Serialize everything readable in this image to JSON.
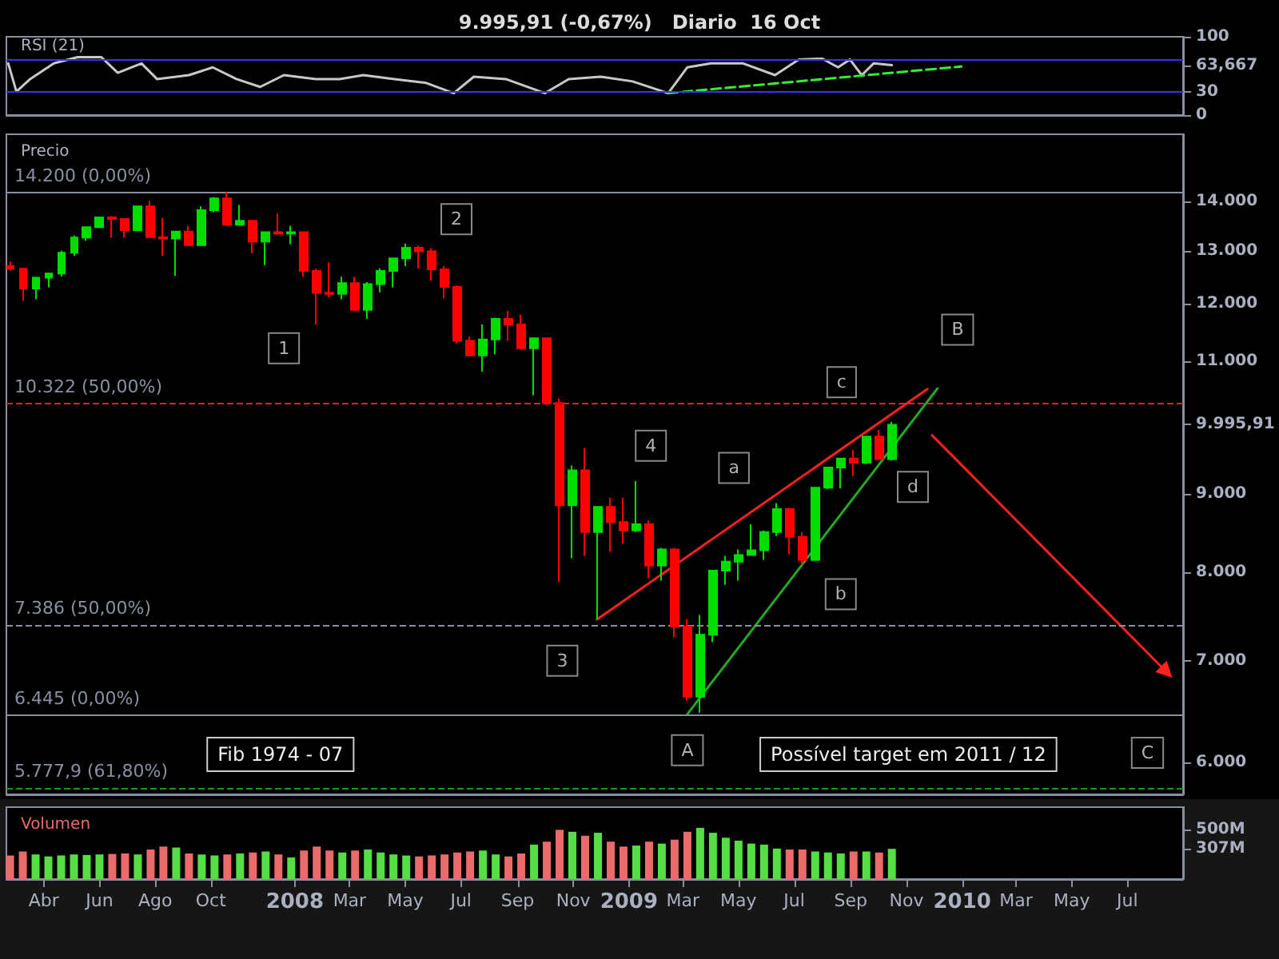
{
  "chart_data": [
    {
      "type": "line",
      "title": "9.995,91 (-0,67%)   Diario  16 Oct",
      "subtitle": "RSI (21)",
      "x": [
        "2007-02-21",
        "2007-03-02",
        "2007-03-17",
        "2007-04-12",
        "2007-05-08",
        "2007-06-03",
        "2007-06-21",
        "2007-07-17",
        "2007-08-03",
        "2007-09-07",
        "2007-10-03",
        "2007-10-29",
        "2007-11-24",
        "2007-12-20",
        "2008-01-24",
        "2008-02-19",
        "2008-03-16",
        "2008-04-19",
        "2008-05-24",
        "2008-06-23",
        "2008-07-15",
        "2008-08-19",
        "2008-10-01",
        "2008-10-27",
        "2008-12-01",
        "2009-01-05",
        "2009-02-13",
        "2009-03-06",
        "2009-04-01",
        "2009-05-06",
        "2009-06-10",
        "2009-07-06",
        "2009-08-01",
        "2009-08-18",
        "2009-08-31",
        "2009-09-13",
        "2009-09-26",
        "2009-10-16"
      ],
      "series": [
        {
          "color": "#c8c8c8",
          "values": [
            66,
            30,
            46,
            66,
            74,
            74,
            54,
            66,
            46,
            51,
            61,
            46,
            36,
            51,
            46,
            46,
            51,
            46,
            41,
            28,
            49,
            46,
            28,
            46,
            49,
            43,
            28,
            61,
            66,
            66,
            51,
            71,
            72,
            61,
            71,
            51,
            66,
            63.667
          ]
        },
        {
          "color": "#33ee33",
          "line_style": "dashed",
          "x": [
            "2009-02-13",
            "2009-12-31"
          ],
          "values": [
            28,
            62
          ]
        }
      ],
      "xlim": [
        "2007-02-19",
        "2010-08-31"
      ],
      "ylim": [
        0,
        100
      ],
      "yticks": [
        0,
        30,
        {
          "value": 63.667,
          "label": "63,667"
        },
        100
      ],
      "ref_lines": [
        {
          "axis": "y",
          "value": 70,
          "color": "#3333ff"
        },
        {
          "axis": "y",
          "value": 30,
          "color": "#3333ff"
        }
      ],
      "tick_labels": "y",
      "marker": "none"
    },
    {
      "type": "candlestick",
      "title": "Precio",
      "log": "y",
      "x": [
        "2007-02-23",
        "2007-03-09",
        "2007-03-23",
        "2007-04-06",
        "2007-04-20",
        "2007-05-04",
        "2007-05-18",
        "2007-06-01",
        "2007-06-15",
        "2007-06-29",
        "2007-07-13",
        "2007-07-27",
        "2007-08-10",
        "2007-08-24",
        "2007-09-07",
        "2007-09-21",
        "2007-10-05",
        "2007-10-19",
        "2007-11-02",
        "2007-11-16",
        "2007-11-30",
        "2007-12-14",
        "2007-12-28",
        "2008-01-11",
        "2008-01-25",
        "2008-02-08",
        "2008-02-22",
        "2008-03-07",
        "2008-03-21",
        "2008-04-04",
        "2008-04-18",
        "2008-05-02",
        "2008-05-16",
        "2008-05-30",
        "2008-06-13",
        "2008-06-27",
        "2008-07-11",
        "2008-07-25",
        "2008-08-08",
        "2008-08-22",
        "2008-09-05",
        "2008-09-19",
        "2008-10-03",
        "2008-10-17",
        "2008-10-31",
        "2008-11-14",
        "2008-11-28",
        "2008-12-12",
        "2008-12-26",
        "2009-01-09",
        "2009-01-23",
        "2009-02-06",
        "2009-02-20",
        "2009-03-06",
        "2009-03-20",
        "2009-04-03",
        "2009-04-17",
        "2009-05-01",
        "2009-05-15",
        "2009-05-29",
        "2009-06-12",
        "2009-06-26",
        "2009-07-10",
        "2009-07-24",
        "2009-08-07",
        "2009-08-21",
        "2009-09-04",
        "2009-09-18",
        "2009-10-02",
        "2009-10-16"
      ],
      "ohlc": [
        [
          12700,
          12790,
          12620,
          12650
        ],
        [
          12650,
          12660,
          12050,
          12280
        ],
        [
          12280,
          12500,
          12080,
          12480
        ],
        [
          12480,
          12580,
          12300,
          12560
        ],
        [
          12560,
          13000,
          12500,
          12960
        ],
        [
          12960,
          13300,
          12900,
          13260
        ],
        [
          13260,
          13480,
          13200,
          13470
        ],
        [
          13470,
          13690,
          13450,
          13670
        ],
        [
          13670,
          13700,
          13260,
          13640
        ],
        [
          13640,
          13650,
          13260,
          13410
        ],
        [
          13410,
          13920,
          13400,
          13900
        ],
        [
          13900,
          14020,
          13260,
          13270
        ],
        [
          13270,
          13660,
          12900,
          13240
        ],
        [
          13240,
          13400,
          12520,
          13380
        ],
        [
          13380,
          13500,
          13100,
          13110
        ],
        [
          13110,
          13900,
          13100,
          13820
        ],
        [
          13820,
          14100,
          13780,
          14070
        ],
        [
          14070,
          14200,
          13520,
          13520
        ],
        [
          13520,
          13930,
          13500,
          13600
        ],
        [
          13600,
          13600,
          12950,
          13180
        ],
        [
          13180,
          13380,
          12720,
          13370
        ],
        [
          13370,
          13750,
          13320,
          13340
        ],
        [
          13340,
          13500,
          13130,
          13370
        ],
        [
          13370,
          13370,
          12500,
          12610
        ],
        [
          12610,
          12650,
          11630,
          12200
        ],
        [
          12200,
          12770,
          12120,
          12180
        ],
        [
          12180,
          12500,
          12080,
          12380
        ],
        [
          12380,
          12500,
          11880,
          11890
        ],
        [
          11890,
          12400,
          11730,
          12360
        ],
        [
          12360,
          12660,
          12210,
          12610
        ],
        [
          12610,
          12850,
          12300,
          12850
        ],
        [
          12850,
          13140,
          12700,
          13060
        ],
        [
          13060,
          13100,
          12650,
          12990
        ],
        [
          12990,
          13050,
          12430,
          12640
        ],
        [
          12640,
          12700,
          12100,
          12310
        ],
        [
          12310,
          12340,
          11300,
          11350
        ],
        [
          11350,
          11420,
          11100,
          11100
        ],
        [
          11100,
          11630,
          10830,
          11370
        ],
        [
          11370,
          11750,
          11120,
          11730
        ],
        [
          11730,
          11870,
          11350,
          11630
        ],
        [
          11630,
          11800,
          11220,
          11220
        ],
        [
          11220,
          11400,
          10450,
          11390
        ],
        [
          11390,
          11400,
          10300,
          10330
        ],
        [
          10330,
          10400,
          7880,
          8850
        ],
        [
          8850,
          9400,
          8170,
          9330
        ],
        [
          9330,
          9650,
          8200,
          8500
        ],
        [
          8500,
          8830,
          7450,
          8830
        ],
        [
          8830,
          8950,
          8250,
          8630
        ],
        [
          8630,
          8950,
          8350,
          8520
        ],
        [
          8520,
          9180,
          8500,
          8600
        ],
        [
          8600,
          8650,
          7930,
          8080
        ],
        [
          8080,
          8300,
          7900,
          8280
        ],
        [
          8280,
          8300,
          7250,
          7370
        ],
        [
          7370,
          7450,
          6590,
          6630
        ],
        [
          6630,
          7500,
          6470,
          7280
        ],
        [
          7280,
          8030,
          7200,
          8020
        ],
        [
          8020,
          8200,
          7850,
          8130
        ],
        [
          8130,
          8280,
          7900,
          8210
        ],
        [
          8210,
          8600,
          8200,
          8270
        ],
        [
          8270,
          8520,
          8150,
          8500
        ],
        [
          8500,
          8880,
          8450,
          8800
        ],
        [
          8800,
          8820,
          8220,
          8440
        ],
        [
          8440,
          8500,
          8090,
          8150
        ],
        [
          8150,
          9100,
          8140,
          9090
        ],
        [
          9090,
          9380,
          9070,
          9370
        ],
        [
          9370,
          9510,
          9080,
          9500
        ],
        [
          9500,
          9620,
          9250,
          9440
        ],
        [
          9440,
          9830,
          9420,
          9820
        ],
        [
          9820,
          9920,
          9480,
          9490
        ],
        [
          9490,
          10040,
          9470,
          9995.91
        ]
      ],
      "colors": [
        "#ff0000",
        "#ff0000",
        "#00dd00",
        "#00dd00",
        "#00dd00",
        "#00dd00",
        "#00dd00",
        "#00dd00",
        "#ff0000",
        "#ff0000",
        "#00dd00",
        "#ff0000",
        "#ff0000",
        "#00dd00",
        "#ff0000",
        "#00dd00",
        "#00dd00",
        "#ff0000",
        "#00dd00",
        "#ff0000",
        "#00dd00",
        "#ff0000",
        "#00dd00",
        "#ff0000",
        "#ff0000",
        "#ff0000",
        "#00dd00",
        "#ff0000",
        "#00dd00",
        "#00dd00",
        "#00dd00",
        "#00dd00",
        "#ff0000",
        "#ff0000",
        "#ff0000",
        "#ff0000",
        "#ff0000",
        "#00dd00",
        "#00dd00",
        "#ff0000",
        "#ff0000",
        "#00dd00",
        "#ff0000",
        "#ff0000",
        "#00dd00",
        "#ff0000",
        "#00dd00",
        "#ff0000",
        "#ff0000",
        "#00dd00",
        "#ff0000",
        "#00dd00",
        "#ff0000",
        "#ff0000",
        "#00dd00",
        "#00dd00",
        "#00dd00",
        "#00dd00",
        "#00dd00",
        "#00dd00",
        "#00dd00",
        "#ff0000",
        "#ff0000",
        "#00dd00",
        "#00dd00",
        "#00dd00",
        "#ff0000",
        "#00dd00",
        "#ff0000",
        "#00dd00"
      ],
      "series": [
        {
          "type": "line",
          "color": "#ff2020",
          "x": [
            "2008-11-27",
            "2009-11-24"
          ],
          "values": [
            7450,
            10550
          ]
        },
        {
          "type": "line",
          "color": "#22aa22",
          "x": [
            "2009-03-06",
            "2009-12-05"
          ],
          "values": [
            6457,
            10560
          ]
        },
        {
          "type": "line",
          "color": "#ff2020",
          "x": [
            "2009-11-29",
            "2010-08-13"
          ],
          "values": [
            9838,
            6880
          ],
          "marker": "triangle"
        }
      ],
      "xlim": [
        "2007-02-19",
        "2010-08-31"
      ],
      "ylim": [
        5720,
        15500
      ],
      "yticks": [
        {
          "value": 6000,
          "label": "6.000"
        },
        {
          "value": 7000,
          "label": "7.000"
        },
        {
          "value": 8000,
          "label": "8.000"
        },
        {
          "value": 9000,
          "label": "9.000"
        },
        {
          "value": 9995.91,
          "label": "9.995,91"
        },
        {
          "value": 11000,
          "label": "11.000"
        },
        {
          "value": 12000,
          "label": "12.000"
        },
        {
          "value": 13000,
          "label": "13.000"
        },
        {
          "value": 14000,
          "label": "14.000"
        }
      ],
      "ref_lines": [
        {
          "axis": "y",
          "value": 14200,
          "label": "14.200 (0,00%)",
          "color": "#8890a0",
          "line_style": "solid"
        },
        {
          "axis": "y",
          "value": 10322,
          "label": "10.322 (50,00%)",
          "color": "#dd2222",
          "line_style": "dashed"
        },
        {
          "axis": "y",
          "value": 7386,
          "label": "7.386 (50,00%)",
          "color": "#8890a0",
          "line_style": "dashed"
        },
        {
          "axis": "y",
          "value": 6445,
          "label": "6.445 (0,00%)",
          "color": "#8890a0",
          "line_style": "solid"
        },
        {
          "axis": "y",
          "value": 5777.9,
          "label": "5.777,9 (61,80%)",
          "color": "#119911",
          "line_style": "dashed"
        }
      ],
      "annotations": [
        {
          "text": "1",
          "x": "2007-12-20",
          "y": 11220
        },
        {
          "text": "2",
          "x": "2008-06-26",
          "y": 13634
        },
        {
          "text": "3",
          "x": "2008-10-20",
          "y": 7000
        },
        {
          "text": "4",
          "x": "2009-01-25",
          "y": 9683
        },
        {
          "text": "a",
          "x": "2009-04-26",
          "y": 9365
        },
        {
          "text": "b",
          "x": "2009-08-21",
          "y": 7740
        },
        {
          "text": "c",
          "x": "2009-08-22",
          "y": 10660
        },
        {
          "text": "d",
          "x": "2009-11-08",
          "y": 9100
        },
        {
          "text": "A",
          "x": "2009-03-06",
          "y": 6115
        },
        {
          "text": "B",
          "x": "2009-12-27",
          "y": 11540
        },
        {
          "text": "C",
          "x": "2010-07-23",
          "y": 6090
        },
        "Fib 1974 - 07",
        "Possível target em 2011 / 12"
      ],
      "tick_labels": "y",
      "marker": "none"
    },
    {
      "type": "bar",
      "title": "Volumen",
      "x": [
        "2007-02-23",
        "2007-03-09",
        "2007-03-23",
        "2007-04-06",
        "2007-04-20",
        "2007-05-04",
        "2007-05-18",
        "2007-06-01",
        "2007-06-15",
        "2007-06-29",
        "2007-07-13",
        "2007-07-27",
        "2007-08-10",
        "2007-08-24",
        "2007-09-07",
        "2007-09-21",
        "2007-10-05",
        "2007-10-19",
        "2007-11-02",
        "2007-11-16",
        "2007-11-30",
        "2007-12-14",
        "2007-12-28",
        "2008-01-11",
        "2008-01-25",
        "2008-02-08",
        "2008-02-22",
        "2008-03-07",
        "2008-03-21",
        "2008-04-04",
        "2008-04-18",
        "2008-05-02",
        "2008-05-16",
        "2008-05-30",
        "2008-06-13",
        "2008-06-27",
        "2008-07-11",
        "2008-07-25",
        "2008-08-08",
        "2008-08-22",
        "2008-09-05",
        "2008-09-19",
        "2008-10-03",
        "2008-10-17",
        "2008-10-31",
        "2008-11-14",
        "2008-11-28",
        "2008-12-12",
        "2008-12-26",
        "2009-01-09",
        "2009-01-23",
        "2009-02-06",
        "2009-02-20",
        "2009-03-06",
        "2009-03-20",
        "2009-04-03",
        "2009-04-17",
        "2009-05-01",
        "2009-05-15",
        "2009-05-29",
        "2009-06-12",
        "2009-06-26",
        "2009-07-10",
        "2009-07-24",
        "2009-08-07",
        "2009-08-21",
        "2009-09-04",
        "2009-09-18",
        "2009-10-02",
        "2009-10-16"
      ],
      "values": [
        240,
        280,
        250,
        230,
        240,
        250,
        245,
        250,
        255,
        260,
        250,
        300,
        330,
        320,
        260,
        250,
        240,
        250,
        260,
        270,
        280,
        250,
        220,
        290,
        330,
        290,
        270,
        290,
        300,
        270,
        250,
        240,
        230,
        240,
        250,
        270,
        280,
        290,
        250,
        230,
        260,
        350,
        380,
        500,
        480,
        440,
        470,
        380,
        330,
        340,
        380,
        360,
        400,
        480,
        520,
        470,
        420,
        390,
        360,
        350,
        310,
        300,
        300,
        280,
        270,
        260,
        280,
        280,
        270,
        307
      ],
      "colors": [
        "#e86a6a",
        "#e86a6a",
        "#55dd44",
        "#55dd44",
        "#55dd44",
        "#55dd44",
        "#55dd44",
        "#55dd44",
        "#e86a6a",
        "#e86a6a",
        "#55dd44",
        "#e86a6a",
        "#e86a6a",
        "#55dd44",
        "#e86a6a",
        "#55dd44",
        "#55dd44",
        "#e86a6a",
        "#55dd44",
        "#e86a6a",
        "#55dd44",
        "#e86a6a",
        "#55dd44",
        "#e86a6a",
        "#e86a6a",
        "#e86a6a",
        "#55dd44",
        "#e86a6a",
        "#55dd44",
        "#55dd44",
        "#55dd44",
        "#55dd44",
        "#e86a6a",
        "#e86a6a",
        "#e86a6a",
        "#e86a6a",
        "#e86a6a",
        "#55dd44",
        "#55dd44",
        "#e86a6a",
        "#e86a6a",
        "#55dd44",
        "#e86a6a",
        "#e86a6a",
        "#55dd44",
        "#e86a6a",
        "#55dd44",
        "#e86a6a",
        "#e86a6a",
        "#55dd44",
        "#e86a6a",
        "#55dd44",
        "#e86a6a",
        "#e86a6a",
        "#55dd44",
        "#55dd44",
        "#55dd44",
        "#55dd44",
        "#55dd44",
        "#55dd44",
        "#55dd44",
        "#e86a6a",
        "#e86a6a",
        "#55dd44",
        "#55dd44",
        "#55dd44",
        "#e86a6a",
        "#55dd44",
        "#e86a6a",
        "#55dd44"
      ],
      "xlim": [
        "2007-02-19",
        "2010-08-31"
      ],
      "ylim": [
        0,
        730
      ],
      "yticks": [
        {
          "value": 307,
          "label": "307M"
        },
        {
          "value": 500,
          "label": "500M"
        }
      ],
      "xticks": [
        {
          "value": "2007-04-01",
          "label": "Abr"
        },
        {
          "value": "2007-06-01",
          "label": "Jun"
        },
        {
          "value": "2007-08-01",
          "label": "Ago"
        },
        {
          "value": "2007-10-01",
          "label": "Oct"
        },
        {
          "value": "2008-01-01",
          "label": "2008"
        },
        {
          "value": "2008-03-01",
          "label": "Mar"
        },
        {
          "value": "2008-05-01",
          "label": "May"
        },
        {
          "value": "2008-07-01",
          "label": "Jul"
        },
        {
          "value": "2008-09-01",
          "label": "Sep"
        },
        {
          "value": "2008-11-01",
          "label": "Nov"
        },
        {
          "value": "2009-01-01",
          "label": "2009"
        },
        {
          "value": "2009-03-01",
          "label": "Mar"
        },
        {
          "value": "2009-05-01",
          "label": "May"
        },
        {
          "value": "2009-07-01",
          "label": "Jul"
        },
        {
          "value": "2009-09-01",
          "label": "Sep"
        },
        {
          "value": "2009-11-01",
          "label": "Nov"
        },
        {
          "value": "2010-01-01",
          "label": "2010"
        },
        {
          "value": "2010-03-01",
          "label": "Mar"
        },
        {
          "value": "2010-05-01",
          "label": "May"
        },
        {
          "value": "2010-07-01",
          "label": "Jul"
        }
      ]
    }
  ]
}
